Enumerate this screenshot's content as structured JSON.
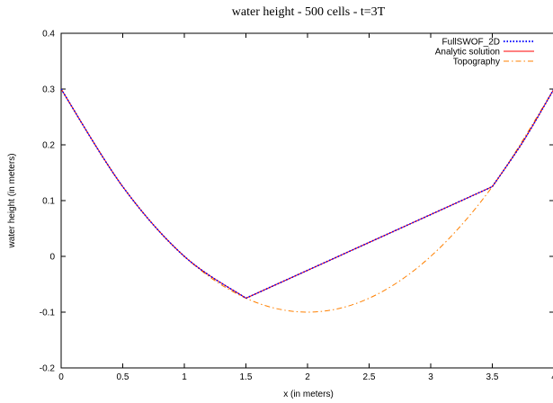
{
  "chart_data": {
    "type": "line",
    "title": "water height - 500 cells - t=3T",
    "xlabel": "x (in meters)",
    "ylabel": "water height (in meters)",
    "xlim": [
      0,
      4
    ],
    "ylim": [
      -0.2,
      0.4
    ],
    "xticks": [
      "0",
      "0.5",
      "1",
      "1.5",
      "2",
      "2.5",
      "3",
      "3.5",
      "4"
    ],
    "yticks": [
      "-0.2",
      "-0.1",
      "0",
      "0.1",
      "0.2",
      "0.3",
      "0.4"
    ],
    "grid": false,
    "legend_position": "top-right",
    "series": [
      {
        "name": "FullSWOF_2D",
        "color": "#0000ff",
        "style": "dotted",
        "x": [
          0,
          0.5,
          1,
          1.5,
          2.5,
          3.5,
          3.75,
          4
        ],
        "y": [
          0.3,
          0.125,
          0.0,
          -0.075,
          0.025,
          0.125,
          0.206,
          0.3
        ]
      },
      {
        "name": "Analytic solution",
        "color": "#ff0000",
        "style": "solid",
        "x": [
          0,
          0.5,
          1,
          1.5,
          2.5,
          3.5,
          3.75,
          4
        ],
        "y": [
          0.3,
          0.125,
          0.0,
          -0.075,
          0.025,
          0.125,
          0.206,
          0.3
        ]
      },
      {
        "name": "Topography",
        "color": "#ff8000",
        "style": "dashdot",
        "x": [
          0,
          0.5,
          1,
          1.5,
          2,
          2.5,
          3,
          3.5,
          4
        ],
        "y": [
          0.3,
          0.125,
          0.0,
          -0.075,
          -0.1,
          -0.075,
          0.0,
          0.125,
          0.3
        ]
      }
    ]
  }
}
